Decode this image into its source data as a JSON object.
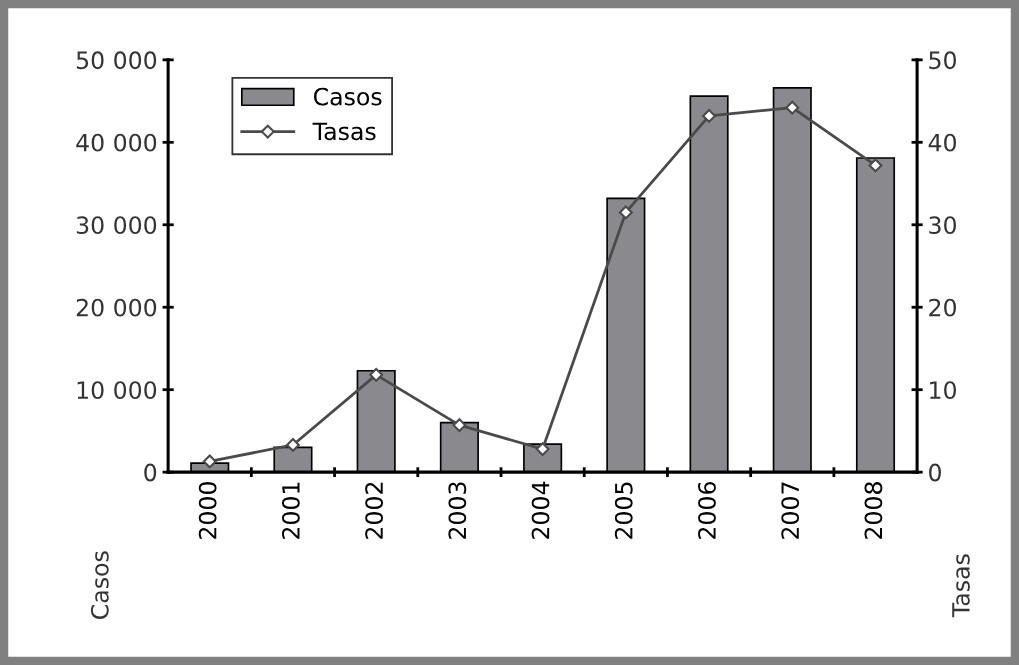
{
  "chart_data": {
    "type": "bar",
    "categories": [
      "2000",
      "2001",
      "2002",
      "2003",
      "2004",
      "2005",
      "2006",
      "2007",
      "2008"
    ],
    "series": [
      {
        "name": "Casos",
        "color": "#8a8a8e",
        "values": [
          1100,
          3000,
          12300,
          6000,
          3400,
          33200,
          45600,
          46600,
          38100
        ]
      },
      {
        "name": "Tasas",
        "type": "line",
        "axis": "y2",
        "color": "#4a4a4a",
        "values": [
          1.3,
          3.3,
          11.8,
          5.7,
          2.8,
          31.5,
          43.2,
          44.2,
          37.2
        ]
      }
    ],
    "ylabel": "Casos",
    "y2label": "Tasas",
    "ylim": [
      0,
      50000
    ],
    "yticks": [
      {
        "value": 0,
        "label": "0"
      },
      {
        "value": 10000,
        "label": "10 000"
      },
      {
        "value": 20000,
        "label": "20 000"
      },
      {
        "value": 30000,
        "label": "30 000"
      },
      {
        "value": 40000,
        "label": "40 000"
      },
      {
        "value": 50000,
        "label": "50 000"
      }
    ],
    "y2lim": [
      0,
      50
    ],
    "y2ticks": [
      0,
      10,
      20,
      30,
      40,
      50
    ],
    "marker": "diamond",
    "line_style": "solid",
    "legend": "top left",
    "grid": false
  }
}
